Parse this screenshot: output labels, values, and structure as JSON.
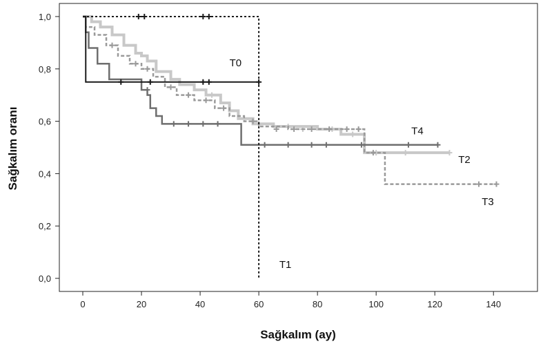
{
  "chart_data": {
    "type": "line",
    "title": "",
    "xlabel": "Sağkalım (ay)",
    "ylabel": "Sağkalım oranı",
    "xlim": [
      -8,
      155
    ],
    "ylim": [
      -0.05,
      1.05
    ],
    "x_ticks": [
      {
        "value": 0,
        "label": "0"
      },
      {
        "value": 20,
        "label": "20"
      },
      {
        "value": 40,
        "label": "40"
      },
      {
        "value": 60,
        "label": "60"
      },
      {
        "value": 80,
        "label": "80"
      },
      {
        "value": 100,
        "label": "100"
      },
      {
        "value": 120,
        "label": "120"
      },
      {
        "value": 140,
        "label": "140"
      }
    ],
    "y_ticks": [
      {
        "value": 0.0,
        "label": "0,0"
      },
      {
        "value": 0.2,
        "label": "0,2"
      },
      {
        "value": 0.4,
        "label": "0,4"
      },
      {
        "value": 0.6,
        "label": "0,6"
      },
      {
        "value": 0.8,
        "label": "0,8"
      },
      {
        "value": 1.0,
        "label": "1,0"
      }
    ],
    "grid": false,
    "series": [
      {
        "name": "T0",
        "color": "#1a1a1a",
        "dash": "",
        "width": 2,
        "label_at": [
          50,
          0.81
        ],
        "steps": [
          [
            0,
            1.0
          ],
          [
            1,
            0.875
          ],
          [
            1,
            0.75
          ],
          [
            60,
            0.75
          ]
        ],
        "censors": [
          [
            13,
            0.75
          ],
          [
            23,
            0.75
          ],
          [
            41,
            0.75
          ],
          [
            43,
            0.75
          ],
          [
            60,
            0.75
          ]
        ]
      },
      {
        "name": "T1",
        "color": "#1a1a1a",
        "dash": "3,3",
        "width": 2,
        "label_at": [
          67,
          0.04
        ],
        "steps": [
          [
            0,
            1.0
          ],
          [
            60,
            1.0
          ],
          [
            60,
            0.0
          ]
        ],
        "censors": [
          [
            19,
            1.0
          ],
          [
            21,
            1.0
          ],
          [
            41,
            1.0
          ],
          [
            43,
            1.0
          ]
        ]
      },
      {
        "name": "T2",
        "color": "#c8c8c8",
        "dash": "",
        "width": 4,
        "label_at": [
          128,
          0.44
        ],
        "steps": [
          [
            0,
            1.0
          ],
          [
            3,
            0.98
          ],
          [
            6,
            0.96
          ],
          [
            10,
            0.93
          ],
          [
            14,
            0.89
          ],
          [
            18,
            0.86
          ],
          [
            20,
            0.85
          ],
          [
            22,
            0.83
          ],
          [
            25,
            0.79
          ],
          [
            30,
            0.76
          ],
          [
            33,
            0.74
          ],
          [
            38,
            0.72
          ],
          [
            42,
            0.7
          ],
          [
            47,
            0.67
          ],
          [
            50,
            0.64
          ],
          [
            53,
            0.61
          ],
          [
            58,
            0.59
          ],
          [
            65,
            0.58
          ],
          [
            80,
            0.57
          ],
          [
            88,
            0.55
          ],
          [
            96,
            0.55
          ],
          [
            96,
            0.48
          ],
          [
            125,
            0.48
          ]
        ],
        "censors": [
          [
            44,
            0.7
          ],
          [
            60,
            0.59
          ],
          [
            70,
            0.58
          ],
          [
            75,
            0.57
          ],
          [
            85,
            0.57
          ],
          [
            92,
            0.55
          ],
          [
            100,
            0.48
          ],
          [
            110,
            0.48
          ],
          [
            125,
            0.48
          ]
        ]
      },
      {
        "name": "T3",
        "color": "#9a9a9a",
        "dash": "5,3",
        "width": 2.5,
        "label_at": [
          136,
          0.28
        ],
        "steps": [
          [
            0,
            1.0
          ],
          [
            1,
            0.96
          ],
          [
            4,
            0.93
          ],
          [
            8,
            0.89
          ],
          [
            12,
            0.85
          ],
          [
            16,
            0.82
          ],
          [
            20,
            0.8
          ],
          [
            24,
            0.77
          ],
          [
            28,
            0.73
          ],
          [
            32,
            0.7
          ],
          [
            38,
            0.68
          ],
          [
            45,
            0.65
          ],
          [
            50,
            0.62
          ],
          [
            55,
            0.6
          ],
          [
            60,
            0.58
          ],
          [
            70,
            0.57
          ],
          [
            96,
            0.57
          ],
          [
            96,
            0.48
          ],
          [
            103,
            0.48
          ],
          [
            103,
            0.36
          ],
          [
            141,
            0.36
          ]
        ],
        "censors": [
          [
            10,
            0.89
          ],
          [
            18,
            0.82
          ],
          [
            22,
            0.8
          ],
          [
            30,
            0.73
          ],
          [
            36,
            0.7
          ],
          [
            42,
            0.68
          ],
          [
            48,
            0.65
          ],
          [
            58,
            0.6
          ],
          [
            66,
            0.57
          ],
          [
            72,
            0.57
          ],
          [
            78,
            0.57
          ],
          [
            84,
            0.57
          ],
          [
            90,
            0.57
          ],
          [
            94,
            0.57
          ],
          [
            99,
            0.48
          ],
          [
            135,
            0.36
          ],
          [
            141,
            0.36
          ]
        ]
      },
      {
        "name": "T4",
        "color": "#6e6e6e",
        "dash": "",
        "width": 2.5,
        "label_at": [
          112,
          0.55
        ],
        "steps": [
          [
            0,
            1.0
          ],
          [
            1,
            0.94
          ],
          [
            2,
            0.88
          ],
          [
            5,
            0.82
          ],
          [
            9,
            0.76
          ],
          [
            20,
            0.76
          ],
          [
            20,
            0.72
          ],
          [
            22,
            0.7
          ],
          [
            23,
            0.65
          ],
          [
            25,
            0.62
          ],
          [
            27,
            0.59
          ],
          [
            54,
            0.59
          ],
          [
            54,
            0.51
          ],
          [
            121,
            0.51
          ]
        ],
        "censors": [
          [
            22,
            0.72
          ],
          [
            31,
            0.59
          ],
          [
            36,
            0.59
          ],
          [
            41,
            0.59
          ],
          [
            46,
            0.59
          ],
          [
            62,
            0.51
          ],
          [
            70,
            0.51
          ],
          [
            78,
            0.51
          ],
          [
            83,
            0.51
          ],
          [
            95,
            0.51
          ],
          [
            111,
            0.51
          ],
          [
            121,
            0.51
          ]
        ]
      }
    ]
  }
}
